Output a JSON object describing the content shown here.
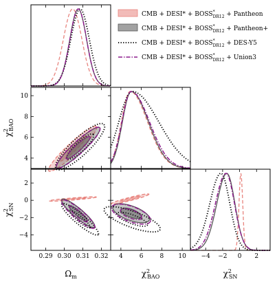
{
  "chart_data": {
    "type": "corner",
    "parameters": [
      {
        "key": "om",
        "label": "Ωm",
        "range": [
          0.282,
          0.325
        ],
        "ticks": [
          0.29,
          0.3,
          0.31,
          0.32
        ],
        "tick_labels": [
          "0.29",
          "0.30",
          "0.31",
          "0.32"
        ]
      },
      {
        "key": "bao",
        "label": "χ²BAO",
        "range": [
          3.0,
          10.8
        ],
        "ticks": [
          4,
          6,
          8,
          10
        ],
        "tick_labels": [
          "4",
          "6",
          "8",
          "10"
        ]
      },
      {
        "key": "sn",
        "label": "χ²SN",
        "range": [
          -5.8,
          3.6
        ],
        "ticks": [
          -4,
          -2,
          0,
          2
        ],
        "tick_labels": [
          "−4",
          "−2",
          "0",
          "2"
        ]
      }
    ],
    "axis_labels": {
      "om_base": "Ω",
      "om_sub": "m",
      "bao_base": "χ",
      "bao_sup": "2",
      "bao_sub": "BAO",
      "sn_base": "χ",
      "sn_sup": "2",
      "sn_sub": "SN"
    },
    "legend_placement": "upper-right",
    "series": [
      {
        "name_main": "CMB + DESI* + BOSS",
        "name_sup": "*",
        "name_sub": "DR12",
        "name_tail": " + Pantheon",
        "color": "#e8847e",
        "style": "filled-dashed",
        "peaks": {
          "om": 0.3045,
          "bao": 4.9,
          "sn": 0.15
        },
        "widths": {
          "om": 0.005,
          "bao": 0.85,
          "sn": 0.22
        }
      },
      {
        "name_main": "CMB + DESI* + BOSS",
        "name_sup": "*",
        "name_sub": "DR12",
        "name_tail": " + Pantheon+",
        "color": "#555555",
        "style": "filled-solid",
        "peaks": {
          "om": 0.3075,
          "bao": 5.0,
          "sn": -1.5
        },
        "widths": {
          "om": 0.0045,
          "bao": 0.85,
          "sn": 0.95
        }
      },
      {
        "name_main": "CMB + DESI* + BOSS",
        "name_sup": "*",
        "name_sub": "DR12",
        "name_tail": " + DES-Y5",
        "color": "#000000",
        "style": "dotted",
        "peaks": {
          "om": 0.3085,
          "bao": 5.1,
          "sn": -2.2
        },
        "widths": {
          "om": 0.005,
          "bao": 1.3,
          "sn": 1.05
        }
      },
      {
        "name_main": "CMB + DESI* + BOSS",
        "name_sup": "*",
        "name_sub": "DR12",
        "name_tail": " + Union3",
        "color": "#8b1a8b",
        "style": "dashdot",
        "peaks": {
          "om": 0.3075,
          "bao": 5.0,
          "sn": -1.6
        },
        "widths": {
          "om": 0.0045,
          "bao": 0.9,
          "sn": 1.0
        }
      }
    ]
  }
}
